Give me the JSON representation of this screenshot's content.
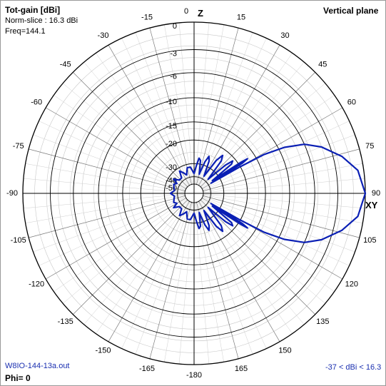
{
  "header": {
    "title": "Tot-gain [dBi]",
    "norm_slice": "Norm-slice : 16.3 dBi",
    "freq": "Freq=144.1",
    "plane": "Vertical plane"
  },
  "axes": {
    "z_label": "Z",
    "xy_label": "XY"
  },
  "footer": {
    "file": "W8IO-144-13a.out",
    "phi": "Phi= 0",
    "range": "-37 < dBi < 16.3"
  },
  "colors": {
    "pattern": "#0a1fb4",
    "grid": "#000000",
    "footer_text": "#1a2fb0"
  },
  "chart_data": {
    "type": "polar",
    "plane": "vertical",
    "angle_unit": "degrees",
    "angle_ticks": [
      0,
      15,
      30,
      45,
      60,
      75,
      90,
      105,
      120,
      135,
      150,
      165,
      -180,
      165,
      150,
      135,
      120,
      105,
      90,
      75,
      60,
      45,
      30,
      15
    ],
    "angle_tick_labels_left": [
      "-15",
      "-30",
      "-45",
      "-60",
      "-75",
      "-90",
      "-105",
      "-120",
      "-135",
      "-150",
      "-165"
    ],
    "angle_tick_labels_right": [
      "15",
      "30",
      "45",
      "60",
      "75",
      "90",
      "105",
      "120",
      "135",
      "150",
      "165"
    ],
    "angle_tick_top": "0",
    "angle_tick_bottom": "-180",
    "radial_ticks_db": [
      "0",
      "-3",
      "-6",
      "-10",
      "-15",
      "-20",
      "-30",
      "-40",
      "-50"
    ],
    "radial_levels_db": [
      0,
      -3,
      -6,
      -10,
      -15,
      -20,
      -30,
      -40,
      -50
    ],
    "max_gain_dbi": 16.3,
    "min_gain_dbi": -37,
    "frequency_mhz": 144.1,
    "series": [
      {
        "points": [
          [
            90,
            0
          ],
          [
            82,
            -0.6
          ],
          [
            76,
            -2
          ],
          [
            70,
            -4
          ],
          [
            66,
            -6
          ],
          [
            63,
            -9
          ],
          [
            61,
            -13
          ],
          [
            60,
            -20
          ],
          [
            59,
            -37
          ],
          [
            58,
            -19
          ],
          [
            57,
            -17
          ],
          [
            56.5,
            -19
          ],
          [
            55,
            -35
          ],
          [
            52,
            -22
          ],
          [
            50,
            -21
          ],
          [
            48,
            -24
          ],
          [
            45,
            -37
          ],
          [
            40,
            -24
          ],
          [
            37,
            -22
          ],
          [
            34,
            -25
          ],
          [
            30,
            -37
          ],
          [
            25,
            -27
          ],
          [
            22,
            -25
          ],
          [
            19,
            -28
          ],
          [
            15,
            -37
          ],
          [
            11,
            -28
          ],
          [
            8,
            -27
          ],
          [
            5,
            -31
          ],
          [
            0,
            -37
          ],
          [
            -8,
            -32
          ],
          [
            -15,
            -32
          ],
          [
            -22,
            -37
          ],
          [
            -28,
            -34
          ],
          [
            -33,
            -32
          ],
          [
            -39,
            -37
          ],
          [
            -48,
            -37
          ],
          [
            -55,
            -33
          ],
          [
            -60,
            -37
          ],
          [
            -66,
            -35
          ],
          [
            -73,
            -36
          ],
          [
            -82,
            -37
          ],
          [
            -90,
            -34
          ],
          [
            -98,
            -37
          ],
          [
            -107,
            -36
          ],
          [
            -114,
            -35
          ],
          [
            -120,
            -37
          ],
          [
            -125,
            -33
          ],
          [
            -132,
            -37
          ],
          [
            -141,
            -37
          ],
          [
            -147,
            -32
          ],
          [
            -152,
            -34
          ],
          [
            -158,
            -37
          ],
          [
            -165,
            -32
          ],
          [
            -172,
            -32
          ],
          [
            -180,
            -37
          ],
          [
            175,
            -31
          ],
          [
            172,
            -27
          ],
          [
            169,
            -28
          ],
          [
            165,
            -37
          ],
          [
            161,
            -28
          ],
          [
            158,
            -25
          ],
          [
            155,
            -27
          ],
          [
            150,
            -37
          ],
          [
            146,
            -25
          ],
          [
            143,
            -22
          ],
          [
            140,
            -24
          ],
          [
            135,
            -37
          ],
          [
            132,
            -24
          ],
          [
            130,
            -21
          ],
          [
            128,
            -22
          ],
          [
            125,
            -35
          ],
          [
            123.5,
            -19
          ],
          [
            123,
            -17
          ],
          [
            122,
            -19
          ],
          [
            121,
            -37
          ],
          [
            120,
            -20
          ],
          [
            119,
            -13
          ],
          [
            117,
            -9
          ],
          [
            114,
            -6
          ],
          [
            110,
            -4
          ],
          [
            104,
            -2
          ],
          [
            98,
            -0.6
          ],
          [
            90,
            0
          ]
        ]
      }
    ]
  }
}
